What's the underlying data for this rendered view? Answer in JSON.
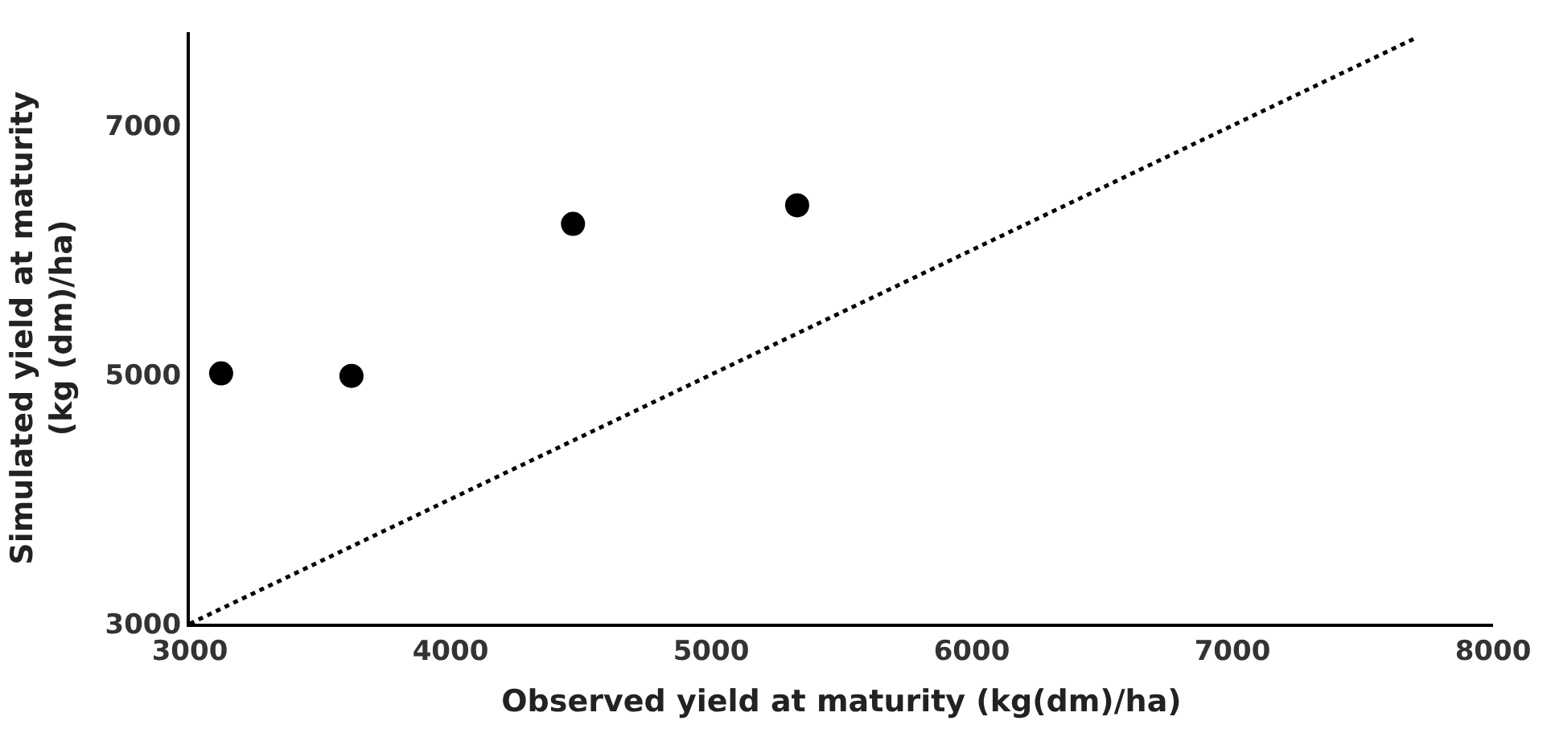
{
  "chart_data": {
    "type": "scatter",
    "xlabel": "Observed yield at maturity (kg(dm)/ha)",
    "ylabel": "Simulated yield at maturity\n(kg (dm)/ha)",
    "xlim": [
      3000,
      8000
    ],
    "ylim": [
      3000,
      7750
    ],
    "xticks": [
      3000,
      4000,
      5000,
      6000,
      7000,
      8000
    ],
    "yticks": [
      3000,
      5000,
      7000
    ],
    "marker": "circle",
    "series": [
      {
        "color": "#000000",
        "x": [
          3120,
          3620,
          4470,
          5330
        ],
        "values": [
          5010,
          4990,
          6210,
          6360
        ]
      },
      {
        "type": "line",
        "color": "#000000",
        "line_style": "dotted",
        "marker": "none",
        "x": [
          3000,
          7700
        ],
        "values": [
          3000,
          7700
        ]
      }
    ]
  }
}
